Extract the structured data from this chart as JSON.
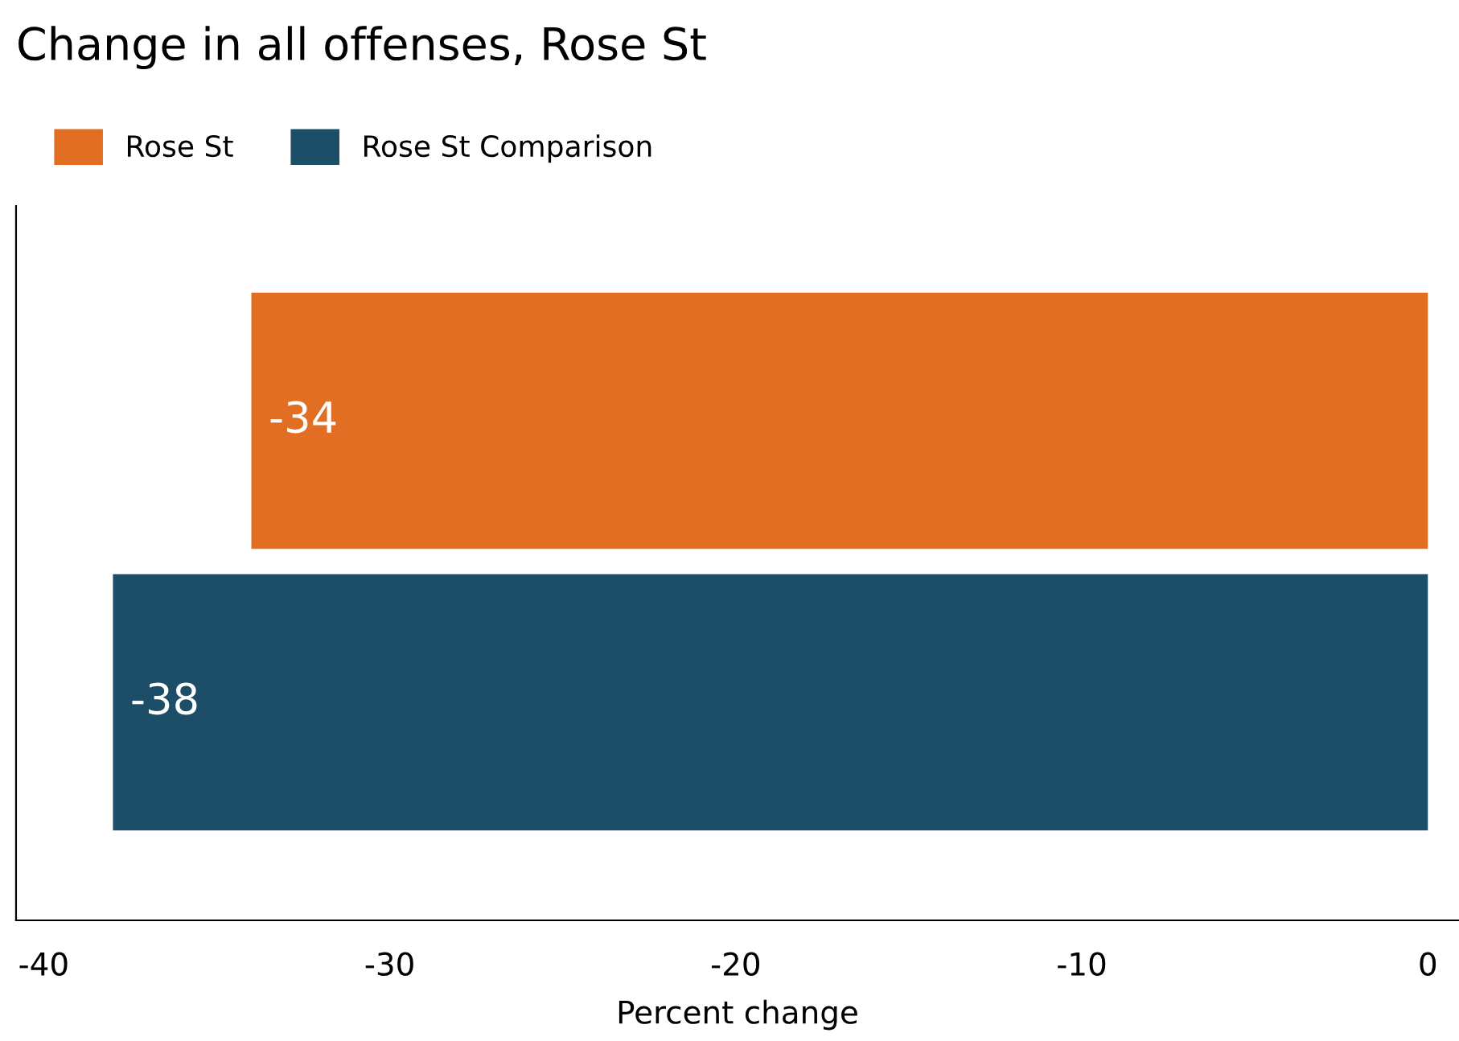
{
  "chart_data": {
    "type": "bar",
    "orientation": "horizontal",
    "title": "Change in all offenses, Rose St",
    "xlabel": "Percent change",
    "categories": [
      null,
      null
    ],
    "series": [
      {
        "name": "Rose St",
        "color": "#e16e22",
        "values": [
          -34,
          null
        ]
      },
      {
        "name": "Rose St Comparison",
        "color": "#1c4f67",
        "values": [
          null,
          -38
        ]
      }
    ],
    "xlim": [
      -40.8,
      0.9
    ],
    "xticks": [
      -40,
      -30,
      -20,
      -10,
      0
    ],
    "data_labels": true,
    "legend": "top left",
    "grid": false
  }
}
